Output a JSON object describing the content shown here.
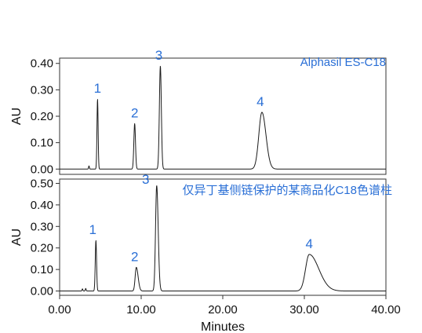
{
  "chart_data": [
    {
      "type": "line",
      "annotation": "Alphasil ES-C18",
      "ylabel": "AU",
      "xlabel": "",
      "xlim": [
        0,
        40
      ],
      "ylim": [
        -0.02,
        0.42
      ],
      "yticks": [
        0.0,
        0.1,
        0.2,
        0.3,
        0.4
      ],
      "ytick_labels": [
        "0.00",
        "0.10",
        "0.20",
        "0.30",
        "0.40"
      ],
      "baseline": 0.0,
      "peaks": [
        {
          "label": "",
          "x": 3.6,
          "y": 0.012,
          "w": 0.05
        },
        {
          "label": "1",
          "x": 4.65,
          "y": 0.265,
          "w": 0.07
        },
        {
          "label": "2",
          "x": 9.2,
          "y": 0.172,
          "w": 0.1
        },
        {
          "label": "3",
          "x": 12.35,
          "y": 0.39,
          "w": 0.12
        },
        {
          "label": "4",
          "x": 24.8,
          "y": 0.215,
          "w": 0.38,
          "tail": 1.3
        }
      ]
    },
    {
      "type": "line",
      "annotation": "仅异丁基侧链保护的某商品化C18色谱柱",
      "ylabel": "AU",
      "xlabel": "Minutes",
      "xlim": [
        0,
        40
      ],
      "ylim": [
        -0.02,
        0.52
      ],
      "xticks": [
        0,
        10,
        20,
        30,
        40
      ],
      "xtick_labels": [
        "0.00",
        "10.00",
        "20.00",
        "30.00",
        "40.00"
      ],
      "yticks": [
        0.0,
        0.1,
        0.2,
        0.3,
        0.4,
        0.5
      ],
      "ytick_labels": [
        "0.00",
        "0.10",
        "0.20",
        "0.30",
        "0.40",
        "0.50"
      ],
      "baseline": 0.0,
      "peaks": [
        {
          "label": "",
          "x": 2.8,
          "y": 0.01,
          "w": 0.05
        },
        {
          "label": "",
          "x": 3.2,
          "y": 0.012,
          "w": 0.05
        },
        {
          "label": "1",
          "x": 4.45,
          "y": 0.235,
          "w": 0.08
        },
        {
          "label": "2",
          "x": 9.4,
          "y": 0.11,
          "w": 0.14,
          "tail": 1.6
        },
        {
          "label": "3",
          "x": 11.9,
          "y": 0.49,
          "w": 0.14,
          "tail": 1.3
        },
        {
          "label": "4",
          "x": 30.6,
          "y": 0.17,
          "w": 0.45,
          "tail": 2.6
        }
      ]
    }
  ]
}
